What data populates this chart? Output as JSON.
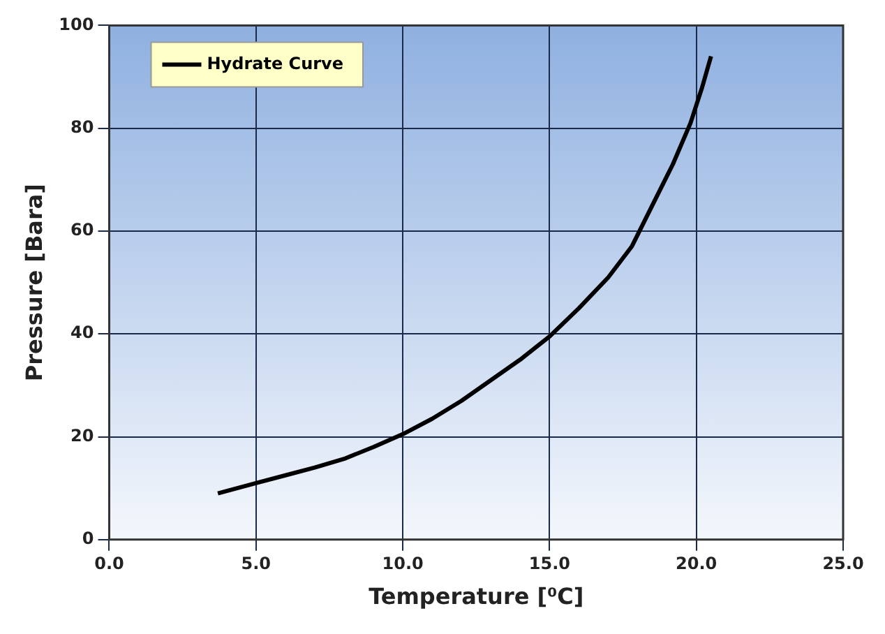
{
  "chart_data": {
    "type": "line",
    "xlabel": "Temperature [⁰C]",
    "ylabel": "Pressure [Bara]",
    "x": [
      3.7,
      5,
      6,
      7,
      8,
      9,
      10,
      11,
      12,
      13,
      14,
      15,
      16,
      17,
      17.8,
      18.5,
      19.2,
      19.8,
      20.2,
      20.5
    ],
    "series": [
      {
        "name": "Hydrate Curve",
        "color": "#000000",
        "values": [
          9,
          11,
          12.5,
          14,
          15.7,
          18,
          20.5,
          23.5,
          27,
          31,
          35,
          39.5,
          45,
          51,
          57,
          65,
          73,
          81,
          88,
          94
        ]
      }
    ],
    "xlim": [
      0,
      25
    ],
    "xticks": [
      {
        "value": 0,
        "label": "0.0"
      },
      {
        "value": 5,
        "label": "5.0"
      },
      {
        "value": 10,
        "label": "10.0"
      },
      {
        "value": 15,
        "label": "15.0"
      },
      {
        "value": 20,
        "label": "20.0"
      },
      {
        "value": 25,
        "label": "25.0"
      }
    ],
    "ylim": [
      0,
      100
    ],
    "yticks": [
      0,
      20,
      40,
      60,
      80,
      100
    ],
    "grid": true,
    "legend": "top left",
    "marker": "none",
    "line_style": "solid"
  }
}
